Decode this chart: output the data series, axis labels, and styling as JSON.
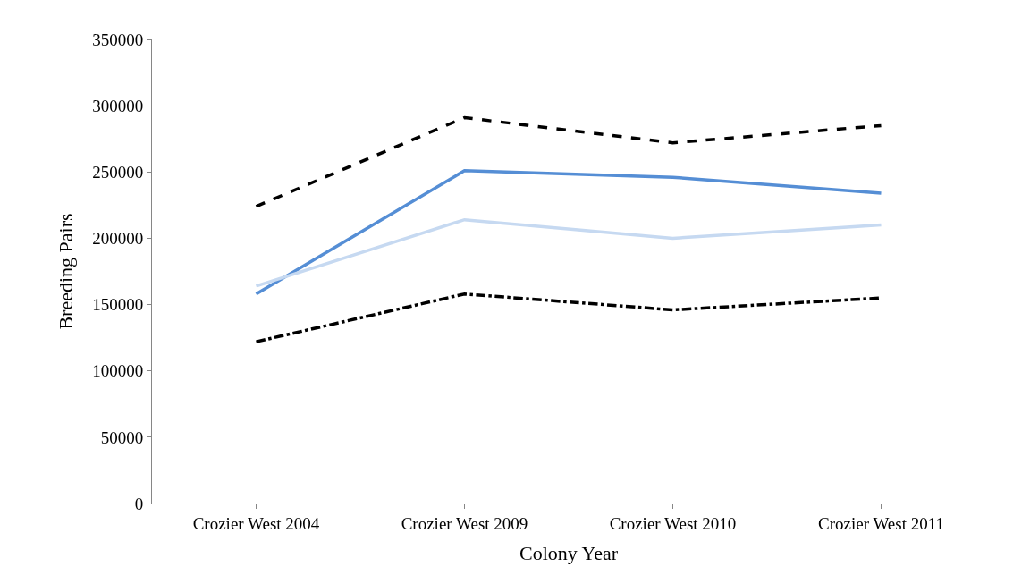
{
  "chart_data": {
    "type": "line",
    "xlabel": "Colony Year",
    "ylabel": "Breeding Pairs",
    "categories": [
      "Crozier West 2004",
      "Crozier West 2009",
      "Crozier West 2010",
      "Crozier West 2011"
    ],
    "series": [
      {
        "color": "#000000",
        "line_style": "dashed",
        "values": [
          224000,
          291000,
          272000,
          285000
        ]
      },
      {
        "color": "#558ed5",
        "line_style": "solid",
        "values": [
          158000,
          251000,
          246000,
          234000
        ]
      },
      {
        "color": "#c6d9f1",
        "line_style": "solid",
        "values": [
          164000,
          214000,
          200000,
          210000
        ]
      },
      {
        "color": "#000000",
        "line_style": "dashdot",
        "values": [
          122000,
          158000,
          146000,
          155000
        ]
      }
    ],
    "ylim": [
      0,
      350000
    ],
    "yticks": [
      0,
      50000,
      100000,
      150000,
      200000,
      250000,
      300000,
      350000
    ],
    "marker": "none"
  }
}
